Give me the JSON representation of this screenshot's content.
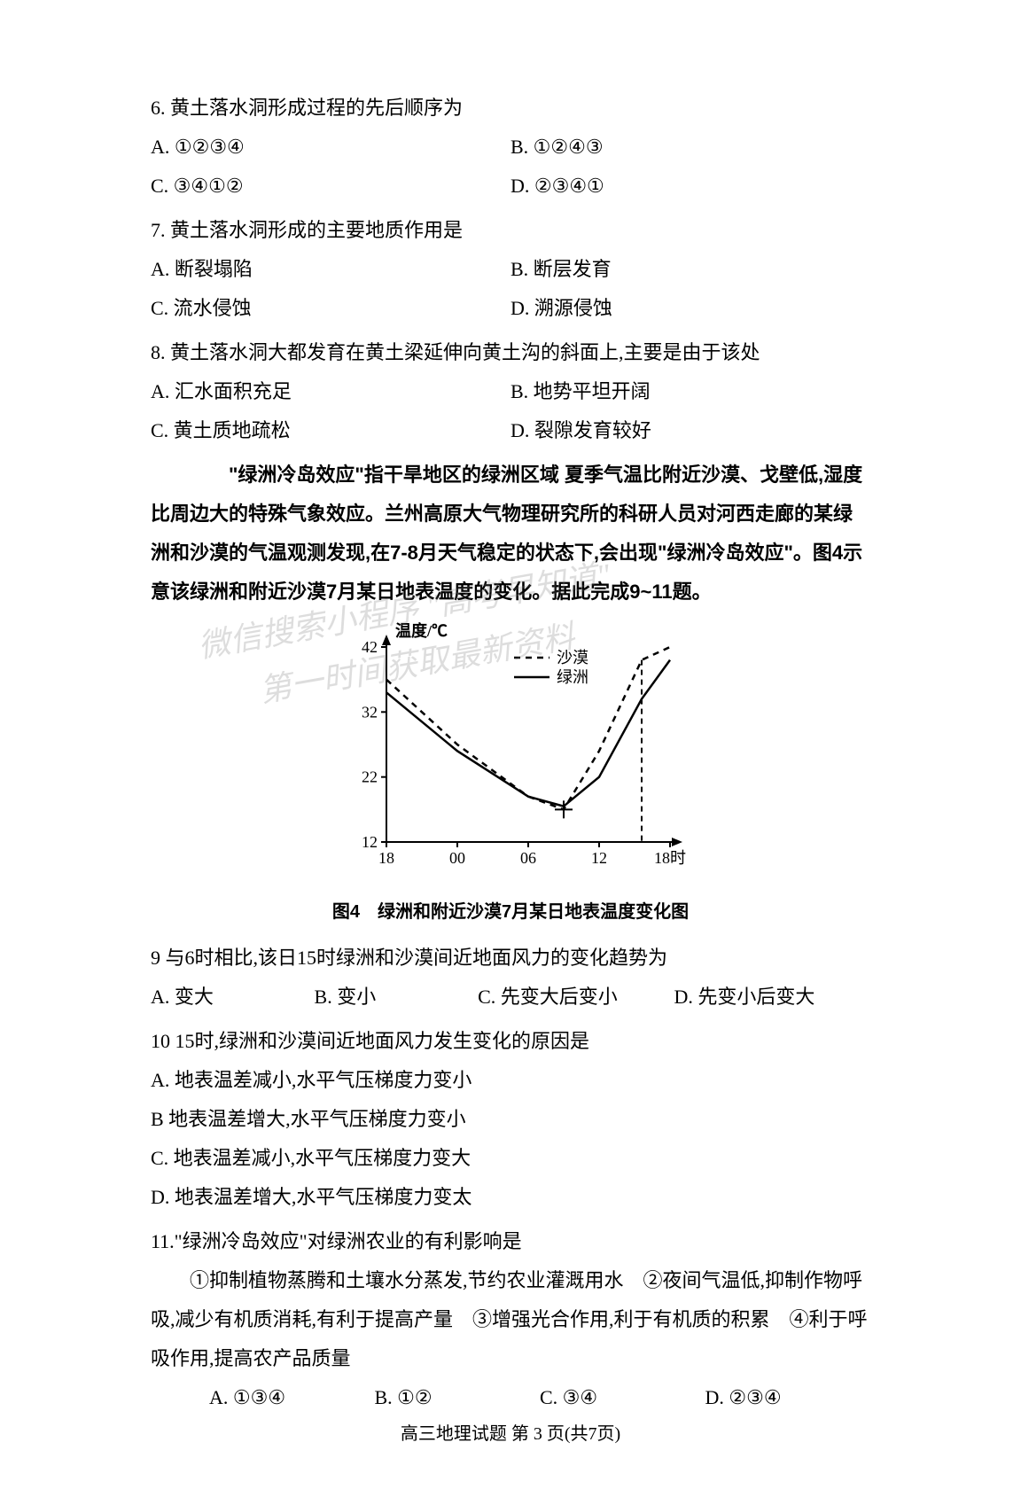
{
  "q6": {
    "stem": "6. 黄土落水洞形成过程的先后顺序为",
    "A": "A. ①②③④",
    "B": "B. ①②④③",
    "C": "C. ③④①②",
    "D": "D. ②③④①"
  },
  "q7": {
    "stem": "7. 黄土落水洞形成的主要地质作用是",
    "A": "A. 断裂塌陷",
    "B": "B. 断层发育",
    "C": "C. 流水侵蚀",
    "D": "D. 溯源侵蚀"
  },
  "q8": {
    "stem": "8. 黄土落水洞大都发育在黄土梁延伸向黄土沟的斜面上,主要是由于该处",
    "A": "A. 汇水面积充足",
    "B": "B. 地势平坦开阔",
    "C": "C. 黄土质地疏松",
    "D": "D. 裂隙发育较好"
  },
  "passage": "　　\"绿洲冷岛效应\"指干旱地区的绿洲区域 夏季气温比附近沙漠、戈壁低,湿度比周边大的特殊气象效应。兰州高原大气物理研究所的科研人员对河西走廊的某绿洲和沙漠的气温观测发现,在7-8月天气稳定的状态下,会出现\"绿洲冷岛效应\"。图4示意该绿洲和附近沙漠7月某日地表温度的变化。据此完成9~11题。",
  "chart": {
    "type": "line",
    "title_fontsize": 20,
    "background_color": "#ffffff",
    "axis_color": "#000000",
    "text_color": "#000000",
    "ylabel": "温度/℃",
    "xlabel_suffix": "时",
    "ylim": [
      12,
      42
    ],
    "ytick_step": 10,
    "yticks": [
      12,
      22,
      32,
      42
    ],
    "x_categories": [
      "18",
      "00",
      "06",
      "12",
      "18"
    ],
    "legend": {
      "desert": "沙漠",
      "oasis": "绿洲"
    },
    "series": {
      "desert": {
        "style": "dashed",
        "color": "#000000",
        "width": 2.5,
        "points": [
          [
            0,
            37
          ],
          [
            1,
            27
          ],
          [
            2,
            19
          ],
          [
            2.5,
            17
          ],
          [
            3,
            26
          ],
          [
            3.6,
            40
          ],
          [
            4,
            42
          ]
        ]
      },
      "oasis": {
        "style": "solid",
        "color": "#000000",
        "width": 2.5,
        "points": [
          [
            0,
            35
          ],
          [
            1,
            26
          ],
          [
            2,
            19
          ],
          [
            2.5,
            17.5
          ],
          [
            3,
            22
          ],
          [
            3.6,
            34
          ],
          [
            4,
            40
          ]
        ]
      }
    },
    "caption": "图4　绿洲和附近沙漠7月某日地表温度变化图"
  },
  "q9": {
    "stem": "9 与6时相比,该日15时绿洲和沙漠间近地面风力的变化趋势为",
    "A": "A. 变大",
    "B": "B. 变小",
    "C": "C. 先变大后变小",
    "D": "D. 先变小后变大"
  },
  "q10": {
    "stem": "10 15时,绿洲和沙漠间近地面风力发生变化的原因是",
    "A": "A. 地表温差减小,水平气压梯度力变小",
    "B": "B  地表温差增大,水平气压梯度力变小",
    "C": "C. 地表温差减小,水平气压梯度力变大",
    "D": "D. 地表温差增大,水平气压梯度力变太"
  },
  "q11": {
    "stem": "11.\"绿洲冷岛效应\"对绿洲农业的有利影响是",
    "sub": "　　①抑制植物蒸腾和土壤水分蒸发,节约农业灌溉用水　②夜间气温低,抑制作物呼吸,减少有机质消耗,有利于提高产量　③增强光合作用,利于有机质的积累　④利于呼吸作用,提高农产品质量",
    "A": "A. ①③④",
    "B": "B. ①②",
    "C": "C. ③④",
    "D": "D. ②③④"
  },
  "footer": "高三地理试题 第 3 页(共7页)",
  "watermark": {
    "line1": "微信搜索小程序 \"高考早知道\"",
    "line2": "第一时间获取最新资料"
  }
}
